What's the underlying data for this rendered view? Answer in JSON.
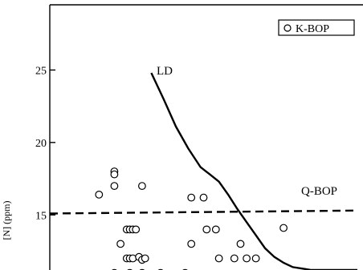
{
  "chart_data": {
    "type": "scatter",
    "ylabel": "[N] (ppm)",
    "yticks": [
      15,
      20,
      25
    ],
    "ylim": [
      11.2,
      29.5
    ],
    "xlim": [
      0,
      100
    ],
    "grid": false,
    "legend": {
      "position": "top-right",
      "marker": "open-circle",
      "label": "K-BOP"
    },
    "curves": [
      {
        "label": "LD",
        "style": "solid",
        "x": [
          33,
          37,
          41,
          45,
          49,
          52,
          55,
          58,
          61,
          64,
          67,
          70,
          73,
          76,
          79,
          82,
          85,
          88,
          91,
          94,
          97,
          100
        ],
        "y": [
          24.8,
          23.0,
          21.1,
          19.6,
          18.3,
          17.8,
          17.3,
          16.4,
          15.4,
          14.5,
          13.6,
          12.7,
          12.1,
          11.7,
          11.4,
          11.3,
          11.2,
          11.2,
          11.2,
          11.2,
          11.2,
          11.2
        ]
      },
      {
        "label": "Q-BOP",
        "style": "dashed",
        "x": [
          0,
          100
        ],
        "y": [
          15.1,
          15.3
        ]
      }
    ],
    "series": [
      {
        "name": "K-BOP",
        "marker": "open-circle",
        "points": [
          [
            21,
            18.0
          ],
          [
            21,
            17.8
          ],
          [
            16,
            16.4
          ],
          [
            21,
            17.0
          ],
          [
            30,
            17.0
          ],
          [
            46,
            16.2
          ],
          [
            50,
            16.2
          ],
          [
            25,
            14.0
          ],
          [
            26,
            14.0
          ],
          [
            27,
            14.0
          ],
          [
            28,
            14.0
          ],
          [
            23,
            13.0
          ],
          [
            46,
            13.0
          ],
          [
            51,
            14.0
          ],
          [
            54,
            14.0
          ],
          [
            62,
            13.0
          ],
          [
            76,
            14.1
          ],
          [
            25,
            12.0
          ],
          [
            26,
            12.0
          ],
          [
            27,
            12.0
          ],
          [
            29,
            12.1
          ],
          [
            30,
            11.9
          ],
          [
            31,
            12.0
          ],
          [
            55,
            12.0
          ],
          [
            60,
            12.0
          ],
          [
            64,
            12.0
          ],
          [
            67,
            12.0
          ],
          [
            21,
            11.0
          ],
          [
            26,
            11.0
          ],
          [
            30,
            11.0
          ],
          [
            36,
            11.0
          ],
          [
            44,
            11.0
          ]
        ]
      }
    ]
  }
}
